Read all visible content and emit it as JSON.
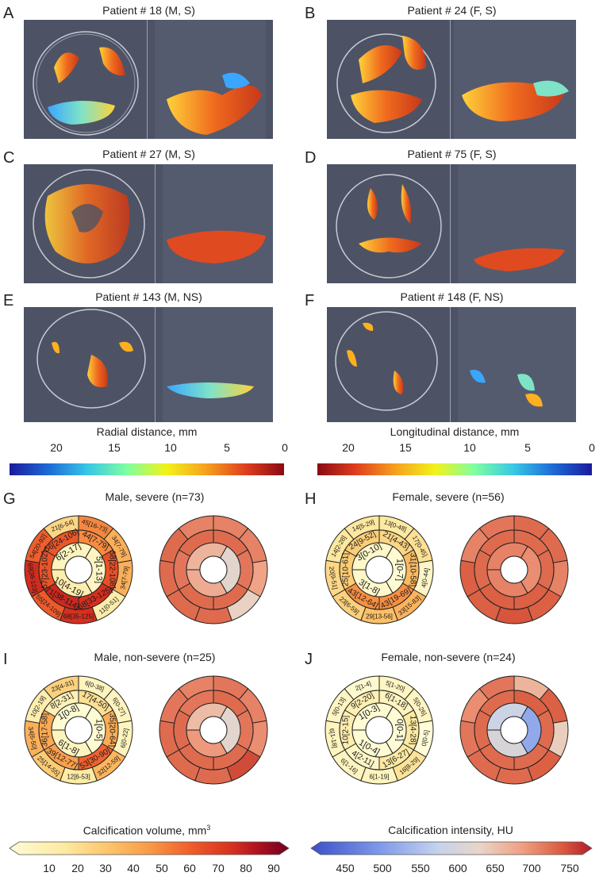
{
  "panels": {
    "labels": [
      "A",
      "B",
      "C",
      "D",
      "E",
      "F",
      "G",
      "H",
      "I",
      "J"
    ],
    "renders": [
      {
        "title": "Patient # 18 (M, S)"
      },
      {
        "title": "Patient # 24 (F, S)"
      },
      {
        "title": "Patient # 27 (M, S)"
      },
      {
        "title": "Patient # 75 (F, S)"
      },
      {
        "title": "Patient # 143 (M, NS)"
      },
      {
        "title": "Patient # 148 (F, NS)"
      }
    ]
  },
  "colorbars": {
    "radial": {
      "label": "Radial distance, mm",
      "ticks": [
        "20",
        "15",
        "10",
        "5",
        "0"
      ]
    },
    "longitudinal": {
      "label": "Longitudinal distance, mm",
      "ticks": [
        "20",
        "15",
        "10",
        "5",
        "0"
      ]
    },
    "volume": {
      "label": "Calcification volume, mm",
      "superscript": "3",
      "ticks": [
        "10",
        "20",
        "30",
        "40",
        "50",
        "60",
        "70",
        "80",
        "90"
      ]
    },
    "intensity": {
      "label": "Calcification intensity, HU",
      "ticks": [
        "450",
        "500",
        "550",
        "600",
        "650",
        "700",
        "750"
      ]
    }
  },
  "colors": {
    "render_bg": "#4d5365",
    "volume_scale": [
      "#fffcd6",
      "#fde9a0",
      "#fcc66c",
      "#f99a48",
      "#ef5d2b",
      "#d62f1f",
      "#a80f1f",
      "#70001f"
    ],
    "intensity_scale": [
      "#3c4fc8",
      "#7f9bea",
      "#c5d2ec",
      "#e8d5c8",
      "#f0a083",
      "#d9583d",
      "#b31b2a"
    ]
  },
  "bullseyes": [
    {
      "title": "Male, severe (n=73)",
      "volume": {
        "ring1": [
          {
            "t": "45[16-73]",
            "v": 45
          },
          {
            "t": "34[7-79]",
            "v": 34
          },
          {
            "t": "34[7-79]",
            "v": 34
          },
          {
            "t": "11[0-51]",
            "v": 11
          },
          {
            "t": "68[35-125]",
            "v": 68
          },
          {
            "t": "55[24-109]",
            "v": 55
          },
          {
            "t": "69[38-123]",
            "v": 69
          },
          {
            "t": "54[20-92]",
            "v": 54
          },
          {
            "t": "21[6-54]",
            "v": 21
          }
        ],
        "ring2": [
          {
            "t": "44[7-79]",
            "v": 44
          },
          {
            "t": "58[22-108]",
            "v": 58
          },
          {
            "t": "68[33-125]",
            "v": 68
          },
          {
            "t": "71[38-114]",
            "v": 71
          },
          {
            "t": "57[23-102]",
            "v": 57
          },
          {
            "t": "56[24-106]",
            "v": 56
          }
        ],
        "ring3": [
          {
            "t": "5[1-13]",
            "v": 5
          },
          {
            "t": "10[4-19]",
            "v": 10
          },
          {
            "t": "6[2-17]",
            "v": 6
          }
        ]
      },
      "intensity": {
        "ring1": [
          700,
          700,
          670,
          615,
          720,
          720,
          720,
          720,
          700
        ],
        "ring2": [
          720,
          710,
          720,
          720,
          710,
          720
        ],
        "ring3": [
          600,
          660,
          650
        ]
      }
    },
    {
      "title": "Female, severe (n=56)",
      "volume": {
        "ring1": [
          {
            "t": "13[0-48]",
            "v": 13
          },
          {
            "t": "17[0-45]",
            "v": 17
          },
          {
            "t": "4[0-44]",
            "v": 4
          },
          {
            "t": "33[15-83]",
            "v": 33
          },
          {
            "t": "29[13-56]",
            "v": 29
          },
          {
            "t": "23[6-59]",
            "v": 23
          },
          {
            "t": "20[9-51]",
            "v": 20
          },
          {
            "t": "14[2-28]",
            "v": 14
          },
          {
            "t": "14[5-29]",
            "v": 14
          }
        ],
        "ring2": [
          {
            "t": "21[4-43]",
            "v": 21
          },
          {
            "t": "31[10-58]",
            "v": 31
          },
          {
            "t": "43[19-69]",
            "v": 43
          },
          {
            "t": "43[12-64]",
            "v": 43
          },
          {
            "t": "25[10-61]",
            "v": 25
          },
          {
            "t": "24[9-52]",
            "v": 24
          }
        ],
        "ring3": [
          {
            "t": "1[0-7]",
            "v": 1
          },
          {
            "t": "3[1-8]",
            "v": 3
          },
          {
            "t": "3[0-10]",
            "v": 3
          }
        ]
      },
      "intensity": {
        "ring1": [
          720,
          720,
          700,
          730,
          740,
          730,
          730,
          700,
          710
        ],
        "ring2": [
          720,
          720,
          730,
          730,
          720,
          720
        ],
        "ring3": [
          690,
          700,
          700
        ]
      }
    },
    {
      "title": "Male, non-severe (n=25)",
      "volume": {
        "ring1": [
          {
            "t": "6[0-38]",
            "v": 6
          },
          {
            "t": "6[0-27]",
            "v": 6
          },
          {
            "t": "6[0-22]",
            "v": 6
          },
          {
            "t": "32[12-59]",
            "v": 32
          },
          {
            "t": "12[6-53]",
            "v": 12
          },
          {
            "t": "25[14-55]",
            "v": 25
          },
          {
            "t": "34[6-50]",
            "v": 34
          },
          {
            "t": "10[2-19]",
            "v": 10
          },
          {
            "t": "23[4-31]",
            "v": 23
          }
        ],
        "ring2": [
          {
            "t": "17[4-50]",
            "v": 17
          },
          {
            "t": "35[20-64]",
            "v": 35
          },
          {
            "t": "53[30-90]",
            "v": 53
          },
          {
            "t": "39[12-77]",
            "v": 39
          },
          {
            "t": "36[17-58]",
            "v": 36
          },
          {
            "t": "8[2-31]",
            "v": 8
          }
        ],
        "ring3": [
          {
            "t": "1[0-5]",
            "v": 1
          },
          {
            "t": "6[1-8]",
            "v": 6
          },
          {
            "t": "1[0-8]",
            "v": 1
          }
        ]
      },
      "intensity": {
        "ring1": [
          710,
          700,
          690,
          750,
          720,
          720,
          720,
          710,
          700
        ],
        "ring2": [
          720,
          710,
          720,
          720,
          720,
          710
        ],
        "ring3": [
          600,
          680,
          640
        ]
      }
    },
    {
      "title": "Female, non-severe (n=24)",
      "volume": {
        "ring1": [
          {
            "t": "5[1-20]",
            "v": 5
          },
          {
            "t": "5[0-26]",
            "v": 5
          },
          {
            "t": "0[0-5]",
            "v": 0
          },
          {
            "t": "16[8-29]",
            "v": 16
          },
          {
            "t": "6[1-19]",
            "v": 6
          },
          {
            "t": "6[1-16]",
            "v": 6
          },
          {
            "t": "6[1-18]",
            "v": 6
          },
          {
            "t": "5[0-13]",
            "v": 5
          },
          {
            "t": "2[1-4]",
            "v": 2
          }
        ],
        "ring2": [
          {
            "t": "6[1-18]",
            "v": 6
          },
          {
            "t": "13[4-28]",
            "v": 13
          },
          {
            "t": "13[6-27]",
            "v": 13
          },
          {
            "t": "4[2-11]",
            "v": 4
          },
          {
            "t": "10[2-15]",
            "v": 10
          },
          {
            "t": "9[2-20]",
            "v": 9
          }
        ],
        "ring3": [
          {
            "t": "0[0-1]",
            "v": 0
          },
          {
            "t": "1[0-4]",
            "v": 1
          },
          {
            "t": "1[0-3]",
            "v": 1
          }
        ]
      },
      "intensity": {
        "ring1": [
          650,
          730,
          620,
          730,
          720,
          720,
          710,
          690,
          710
        ],
        "ring2": [
          730,
          720,
          720,
          720,
          720,
          720
        ],
        "ring3": [
          500,
          580,
          560
        ]
      }
    }
  ]
}
